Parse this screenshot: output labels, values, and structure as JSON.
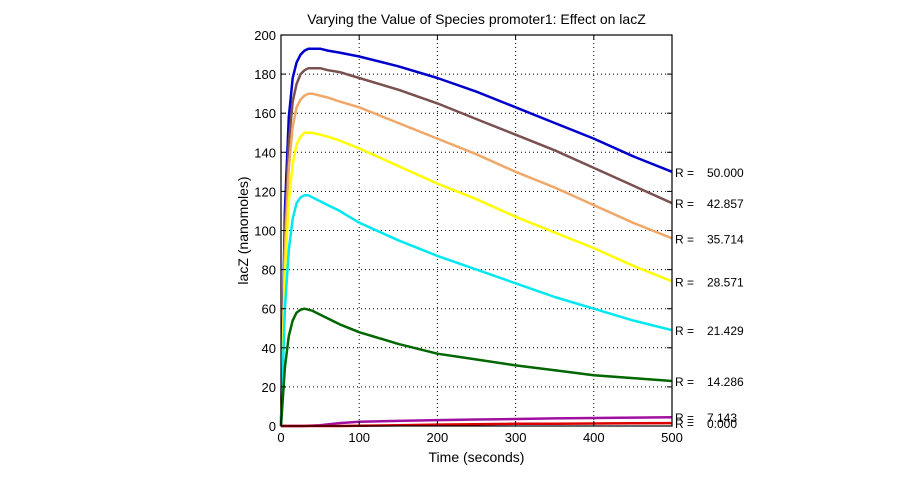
{
  "chart_data": {
    "type": "line",
    "title": "Varying the Value of Species promoter1: Effect on lacZ",
    "xlabel": "Time (seconds)",
    "ylabel": "lacZ (nanomoles)",
    "xlim": [
      0,
      500
    ],
    "ylim": [
      0,
      200
    ],
    "xticks": [
      0,
      100,
      200,
      300,
      400,
      500
    ],
    "yticks": [
      0,
      20,
      40,
      60,
      80,
      100,
      120,
      140,
      160,
      180,
      200
    ],
    "grid": true,
    "legend": "end-of-line labels at right",
    "label_prefix": "R =",
    "x": [
      0,
      5,
      10,
      15,
      20,
      25,
      30,
      35,
      40,
      50,
      60,
      75,
      100,
      150,
      200,
      250,
      300,
      350,
      400,
      450,
      500
    ],
    "series": [
      {
        "name": "50.000",
        "color": "#0000cc",
        "values": [
          0,
          110,
          158,
          178,
          186,
          190,
          192,
          193,
          193,
          193,
          192,
          191,
          189,
          184,
          178,
          171,
          163,
          155,
          147,
          138,
          130
        ]
      },
      {
        "name": "42.857",
        "color": "#7a5050",
        "values": [
          0,
          100,
          145,
          166,
          175,
          180,
          182,
          183,
          183,
          183,
          182,
          181,
          178,
          172,
          165,
          157,
          149,
          141,
          132,
          123,
          114
        ]
      },
      {
        "name": "35.714",
        "color": "#f0a868",
        "values": [
          0,
          90,
          132,
          153,
          163,
          167,
          169,
          170,
          170,
          169,
          168,
          166,
          163,
          155,
          147,
          139,
          130,
          122,
          113,
          104,
          96
        ]
      },
      {
        "name": "28.571",
        "color": "#ffff00",
        "values": [
          0,
          78,
          115,
          134,
          144,
          148,
          150,
          150,
          150,
          149,
          148,
          146,
          142,
          133,
          124,
          116,
          107,
          99,
          91,
          82,
          74
        ]
      },
      {
        "name": "21.429",
        "color": "#00e8f0",
        "values": [
          0,
          60,
          90,
          106,
          114,
          117,
          118,
          118,
          117,
          115,
          113,
          110,
          104,
          95,
          87,
          80,
          73,
          66,
          60,
          54,
          49
        ]
      },
      {
        "name": "14.286",
        "color": "#006600",
        "values": [
          0,
          30,
          46,
          54,
          58,
          59.5,
          60,
          59.5,
          59,
          57,
          55,
          52,
          48,
          42,
          37,
          34,
          31,
          28.5,
          26,
          24.5,
          23
        ]
      },
      {
        "name": "7.143",
        "color": "#a010a0",
        "values": [
          0,
          0,
          0,
          0,
          0,
          0,
          0,
          0.1,
          0.2,
          0.4,
          0.8,
          1.5,
          2.2,
          2.6,
          3.0,
          3.3,
          3.6,
          3.9,
          4.1,
          4.3,
          4.5
        ]
      },
      {
        "name": "0.000",
        "color": "#dd0000",
        "values": [
          0,
          0,
          0,
          0,
          0,
          0,
          0,
          0,
          0,
          0,
          0,
          0,
          0.1,
          0.4,
          0.7,
          0.9,
          1.1,
          1.2,
          1.3,
          1.4,
          1.5
        ]
      }
    ],
    "end_label_values": [
      130,
      114,
      96,
      74,
      49,
      23,
      4.5,
      1.5
    ]
  }
}
